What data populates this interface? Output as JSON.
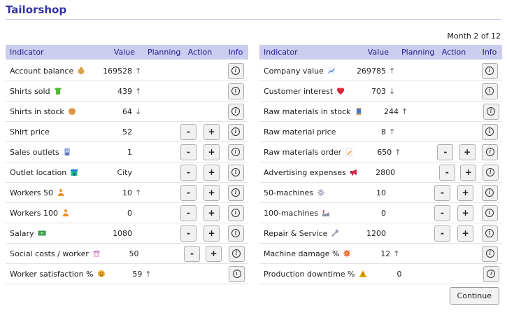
{
  "page": {
    "title": "Tailorshop",
    "month_label": "Month 2 of 12"
  },
  "columns": {
    "indicator": "Indicator",
    "value": "Value",
    "planning": "Planning",
    "action": "Action",
    "info": "Info"
  },
  "buttons": {
    "decrease": "-",
    "increase": "+",
    "info": "i",
    "continue": "Continue"
  },
  "colors": {
    "title_text": "#3232a8",
    "header_bg": "#ccccee",
    "header_text": "#1e1e8f",
    "row_border": "#e2e2ea",
    "trend_arrow": "#555555",
    "button_bg": "#f1f1f1"
  },
  "tables": {
    "left": {
      "rows": [
        {
          "label": "Account balance",
          "icon": "money-bag-icon",
          "value": "169528",
          "trend": "up",
          "has_actions": false
        },
        {
          "label": "Shirts sold",
          "icon": "tshirt-icon",
          "value": "439",
          "trend": "up",
          "has_actions": false
        },
        {
          "label": "Shirts in stock",
          "icon": "yarn-ball-icon",
          "value": "64",
          "trend": "down",
          "has_actions": false
        },
        {
          "label": "Shirt price",
          "icon": "",
          "value": "52",
          "trend": "",
          "has_actions": true
        },
        {
          "label": "Sales outlets",
          "icon": "building-icon",
          "value": "1",
          "trend": "",
          "has_actions": true
        },
        {
          "label": "Outlet location",
          "icon": "store-icon",
          "value": "City",
          "trend": "",
          "has_actions": true
        },
        {
          "label": "Workers 50",
          "icon": "worker-icon",
          "value": "10",
          "trend": "up",
          "has_actions": true
        },
        {
          "label": "Workers 100",
          "icon": "worker-icon",
          "value": "0",
          "trend": "",
          "has_actions": true
        },
        {
          "label": "Salary",
          "icon": "banknote-icon",
          "value": "1080",
          "trend": "",
          "has_actions": true
        },
        {
          "label": "Social costs / worker",
          "icon": "convenience-store-icon",
          "value": "50",
          "trend": "",
          "has_actions": true
        },
        {
          "label": "Worker satisfaction %",
          "icon": "smiley-icon",
          "value": "59",
          "trend": "up",
          "has_actions": false
        }
      ]
    },
    "right": {
      "rows": [
        {
          "label": "Company value",
          "icon": "line-chart-icon",
          "value": "269785",
          "trend": "up",
          "has_actions": false
        },
        {
          "label": "Customer interest",
          "icon": "heart-icon",
          "value": "703",
          "trend": "down",
          "has_actions": false
        },
        {
          "label": "Raw materials in stock",
          "icon": "thread-spool-icon",
          "value": "244",
          "trend": "up",
          "has_actions": false
        },
        {
          "label": "Raw material price",
          "icon": "",
          "value": "8",
          "trend": "up",
          "has_actions": false
        },
        {
          "label": "Raw materials order",
          "icon": "memo-icon",
          "value": "650",
          "trend": "up",
          "has_actions": true
        },
        {
          "label": "Advertising expenses",
          "icon": "megaphone-icon",
          "value": "2800",
          "trend": "",
          "has_actions": true
        },
        {
          "label": "50-machines",
          "icon": "gear-icon",
          "value": "10",
          "trend": "",
          "has_actions": true
        },
        {
          "label": "100-machines",
          "icon": "factory-icon",
          "value": "0",
          "trend": "",
          "has_actions": true
        },
        {
          "label": "Repair & Service",
          "icon": "wrench-icon",
          "value": "1200",
          "trend": "",
          "has_actions": true
        },
        {
          "label": "Machine damage %",
          "icon": "collision-icon",
          "value": "12",
          "trend": "up",
          "has_actions": false
        },
        {
          "label": "Production downtime %",
          "icon": "warning-icon",
          "value": "0",
          "trend": "",
          "has_actions": false
        }
      ]
    }
  }
}
